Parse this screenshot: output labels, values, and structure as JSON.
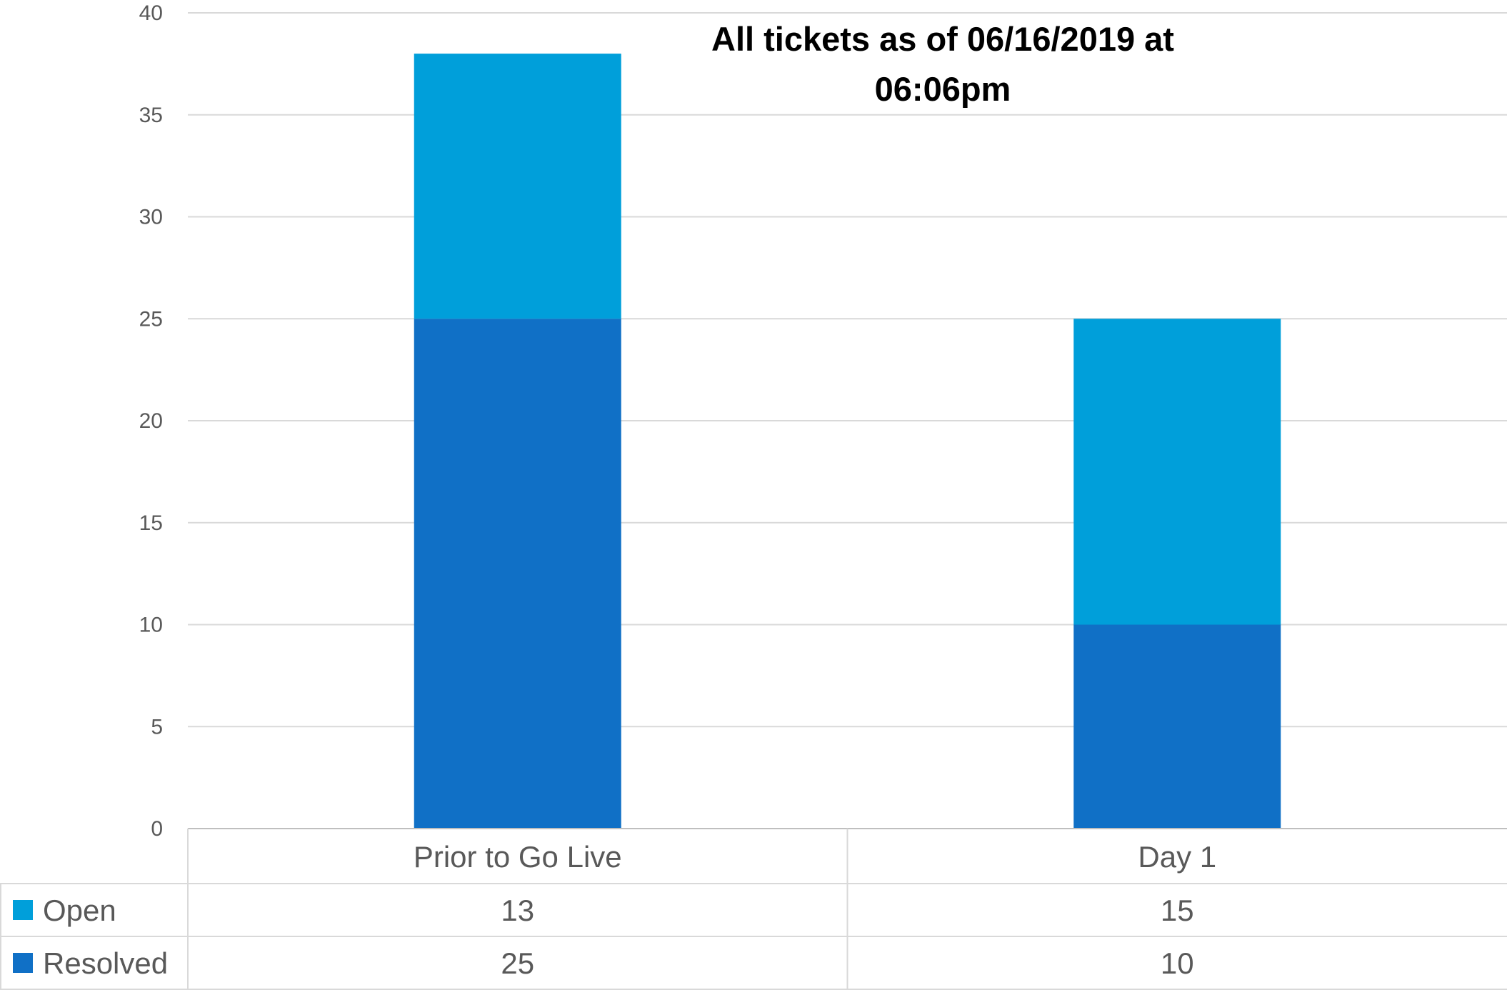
{
  "chart_data": {
    "type": "bar",
    "stacked": true,
    "title": "All tickets as of 06/16/2019 at 06:06pm",
    "categories": [
      "Prior to Go Live",
      "Day 1"
    ],
    "series": [
      {
        "name": "Resolved",
        "values": [
          25,
          10
        ],
        "color": "#1070C6"
      },
      {
        "name": "Open",
        "values": [
          13,
          15
        ],
        "color": "#009FDA"
      }
    ],
    "ylim": [
      0,
      40
    ],
    "yticks": [
      0,
      5,
      10,
      15,
      20,
      25,
      30,
      35,
      40
    ],
    "grid": true,
    "legend": "data-table-below",
    "data_table": {
      "row_order": [
        "Open",
        "Resolved"
      ]
    }
  }
}
